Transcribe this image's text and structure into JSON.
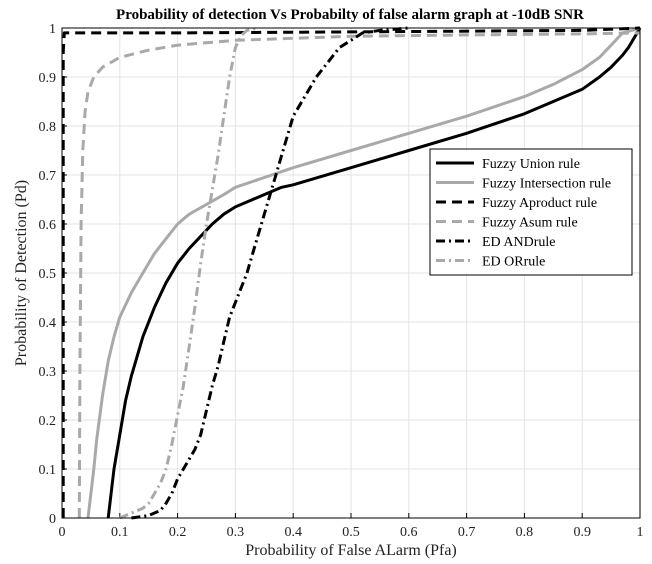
{
  "chart_data": {
    "type": "line",
    "title": "Probability of detection Vs Probabilty of false alarm graph at -10dB SNR",
    "xlabel": "Probability of False ALarm (Pfa)",
    "ylabel": "Probability of Detection (Pd)",
    "xlim": [
      0,
      1
    ],
    "ylim": [
      0,
      1
    ],
    "xticks": [
      "0",
      "0.1",
      "0.2",
      "0.3",
      "0.4",
      "0.5",
      "0.6",
      "0.7",
      "0.8",
      "0.9",
      "1"
    ],
    "yticks": [
      "0",
      "0.1",
      "0.2",
      "0.3",
      "0.4",
      "0.5",
      "0.6",
      "0.7",
      "0.8",
      "0.9",
      "1"
    ],
    "grid": true,
    "legend_position": "right",
    "series": [
      {
        "name": "Fuzzy Union rule",
        "color": "#000000",
        "dash": "solid",
        "x": [
          0.08,
          0.085,
          0.09,
          0.1,
          0.11,
          0.12,
          0.14,
          0.16,
          0.18,
          0.2,
          0.22,
          0.24,
          0.26,
          0.28,
          0.3,
          0.33,
          0.36,
          0.38,
          0.4,
          0.5,
          0.6,
          0.7,
          0.8,
          0.85,
          0.9,
          0.93,
          0.95,
          0.97,
          0.98,
          0.99,
          1.0
        ],
        "y": [
          0.0,
          0.05,
          0.1,
          0.17,
          0.24,
          0.29,
          0.37,
          0.43,
          0.48,
          0.52,
          0.55,
          0.575,
          0.6,
          0.62,
          0.635,
          0.65,
          0.665,
          0.675,
          0.68,
          0.715,
          0.75,
          0.785,
          0.825,
          0.85,
          0.875,
          0.9,
          0.92,
          0.945,
          0.96,
          0.98,
          1.0
        ]
      },
      {
        "name": "Fuzzy Intersection rule",
        "color": "#a9a9a9",
        "dash": "solid",
        "x": [
          0.045,
          0.05,
          0.055,
          0.06,
          0.07,
          0.08,
          0.09,
          0.1,
          0.12,
          0.14,
          0.16,
          0.18,
          0.2,
          0.22,
          0.25,
          0.28,
          0.3,
          0.35,
          0.4,
          0.5,
          0.6,
          0.7,
          0.8,
          0.85,
          0.9,
          0.93,
          0.95,
          0.97,
          1.0
        ],
        "y": [
          0.0,
          0.05,
          0.1,
          0.16,
          0.25,
          0.32,
          0.37,
          0.41,
          0.46,
          0.5,
          0.54,
          0.57,
          0.6,
          0.62,
          0.64,
          0.66,
          0.675,
          0.695,
          0.715,
          0.75,
          0.785,
          0.82,
          0.86,
          0.885,
          0.915,
          0.94,
          0.965,
          0.99,
          1.0
        ]
      },
      {
        "name": "Fuzzy Aproduct rule",
        "color": "#000000",
        "dash": "dash",
        "x": [
          0.002,
          0.002,
          0.004,
          0.01,
          0.05,
          0.2,
          0.5,
          0.9,
          1.0
        ],
        "y": [
          0.0,
          0.95,
          0.99,
          0.99,
          0.99,
          0.99,
          0.992,
          0.995,
          1.0
        ]
      },
      {
        "name": "Fuzzy Asum rule",
        "color": "#a9a9a9",
        "dash": "dash",
        "x": [
          0.03,
          0.031,
          0.033,
          0.036,
          0.04,
          0.045,
          0.055,
          0.07,
          0.1,
          0.15,
          0.2,
          0.3,
          0.5,
          0.7,
          0.9,
          1.0
        ],
        "y": [
          0.0,
          0.3,
          0.6,
          0.75,
          0.83,
          0.87,
          0.9,
          0.92,
          0.94,
          0.955,
          0.965,
          0.975,
          0.983,
          0.986,
          0.988,
          0.99
        ]
      },
      {
        "name": "ED ANDrule",
        "color": "#000000",
        "dash": "dashdot",
        "x": [
          0.12,
          0.15,
          0.17,
          0.18,
          0.19,
          0.2,
          0.21,
          0.22,
          0.23,
          0.24,
          0.25,
          0.26,
          0.27,
          0.28,
          0.29,
          0.3,
          0.31,
          0.32,
          0.33,
          0.34,
          0.35,
          0.36,
          0.37,
          0.38,
          0.39,
          0.4,
          0.42,
          0.44,
          0.46,
          0.48,
          0.5,
          0.52,
          0.55,
          0.6
        ],
        "y": [
          0.0,
          0.005,
          0.015,
          0.03,
          0.05,
          0.08,
          0.1,
          0.12,
          0.14,
          0.17,
          0.22,
          0.27,
          0.31,
          0.36,
          0.41,
          0.44,
          0.47,
          0.5,
          0.54,
          0.58,
          0.62,
          0.66,
          0.7,
          0.74,
          0.78,
          0.82,
          0.86,
          0.9,
          0.93,
          0.96,
          0.975,
          0.99,
          0.995,
          1.0
        ]
      },
      {
        "name": "ED ORrule",
        "color": "#a9a9a9",
        "dash": "dashdot",
        "x": [
          0.1,
          0.12,
          0.14,
          0.15,
          0.16,
          0.17,
          0.18,
          0.19,
          0.2,
          0.21,
          0.22,
          0.23,
          0.24,
          0.25,
          0.26,
          0.27,
          0.28,
          0.29,
          0.3,
          0.31,
          0.32,
          0.34
        ],
        "y": [
          0.0,
          0.01,
          0.02,
          0.03,
          0.05,
          0.07,
          0.1,
          0.15,
          0.21,
          0.27,
          0.35,
          0.43,
          0.52,
          0.6,
          0.67,
          0.74,
          0.82,
          0.9,
          0.96,
          0.985,
          0.995,
          1.0
        ]
      }
    ]
  }
}
